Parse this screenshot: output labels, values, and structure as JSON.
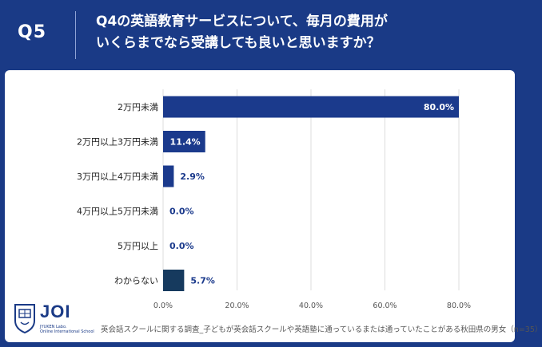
{
  "header": {
    "question_label": "Q5",
    "title_line1": "Q4の英語教育サービスについて、毎月の費用が",
    "title_line2": "いくらまでなら受講しても良いと思いますか？"
  },
  "logo": {
    "name": "JOI",
    "sub_line1": "JYUKEN Labo.",
    "sub_line2": "Online International School"
  },
  "footnote": "英会話スクールに関する調査_子どもが英会話スクールや英語塾に通っているまたは通っていたことがある秋田県の男女（n=35）",
  "colors": {
    "background": "#1a3a86",
    "bar": "#1b3a8c",
    "bar_highlight": "#163a5e",
    "grid": "#dddddd",
    "value_label_outside": "#1b3a8c"
  },
  "chart_data": {
    "type": "bar",
    "orientation": "horizontal",
    "categories": [
      "2万円未満",
      "2万円以上3万円未満",
      "3万円以上4万円未満",
      "4万円以上5万円未満",
      "5万円以上",
      "わからない"
    ],
    "values": [
      80.0,
      11.4,
      2.9,
      0.0,
      0.0,
      5.7
    ],
    "value_labels": [
      "80.0%",
      "11.4%",
      "2.9%",
      "0.0%",
      "0.0%",
      "5.7%"
    ],
    "xlim": [
      0,
      80
    ],
    "xticks": [
      0,
      20,
      40,
      60,
      80
    ],
    "xtick_labels": [
      "0.0%",
      "20.0%",
      "40.0%",
      "60.0%",
      "80.0%"
    ],
    "grid": true,
    "legend": "none"
  }
}
